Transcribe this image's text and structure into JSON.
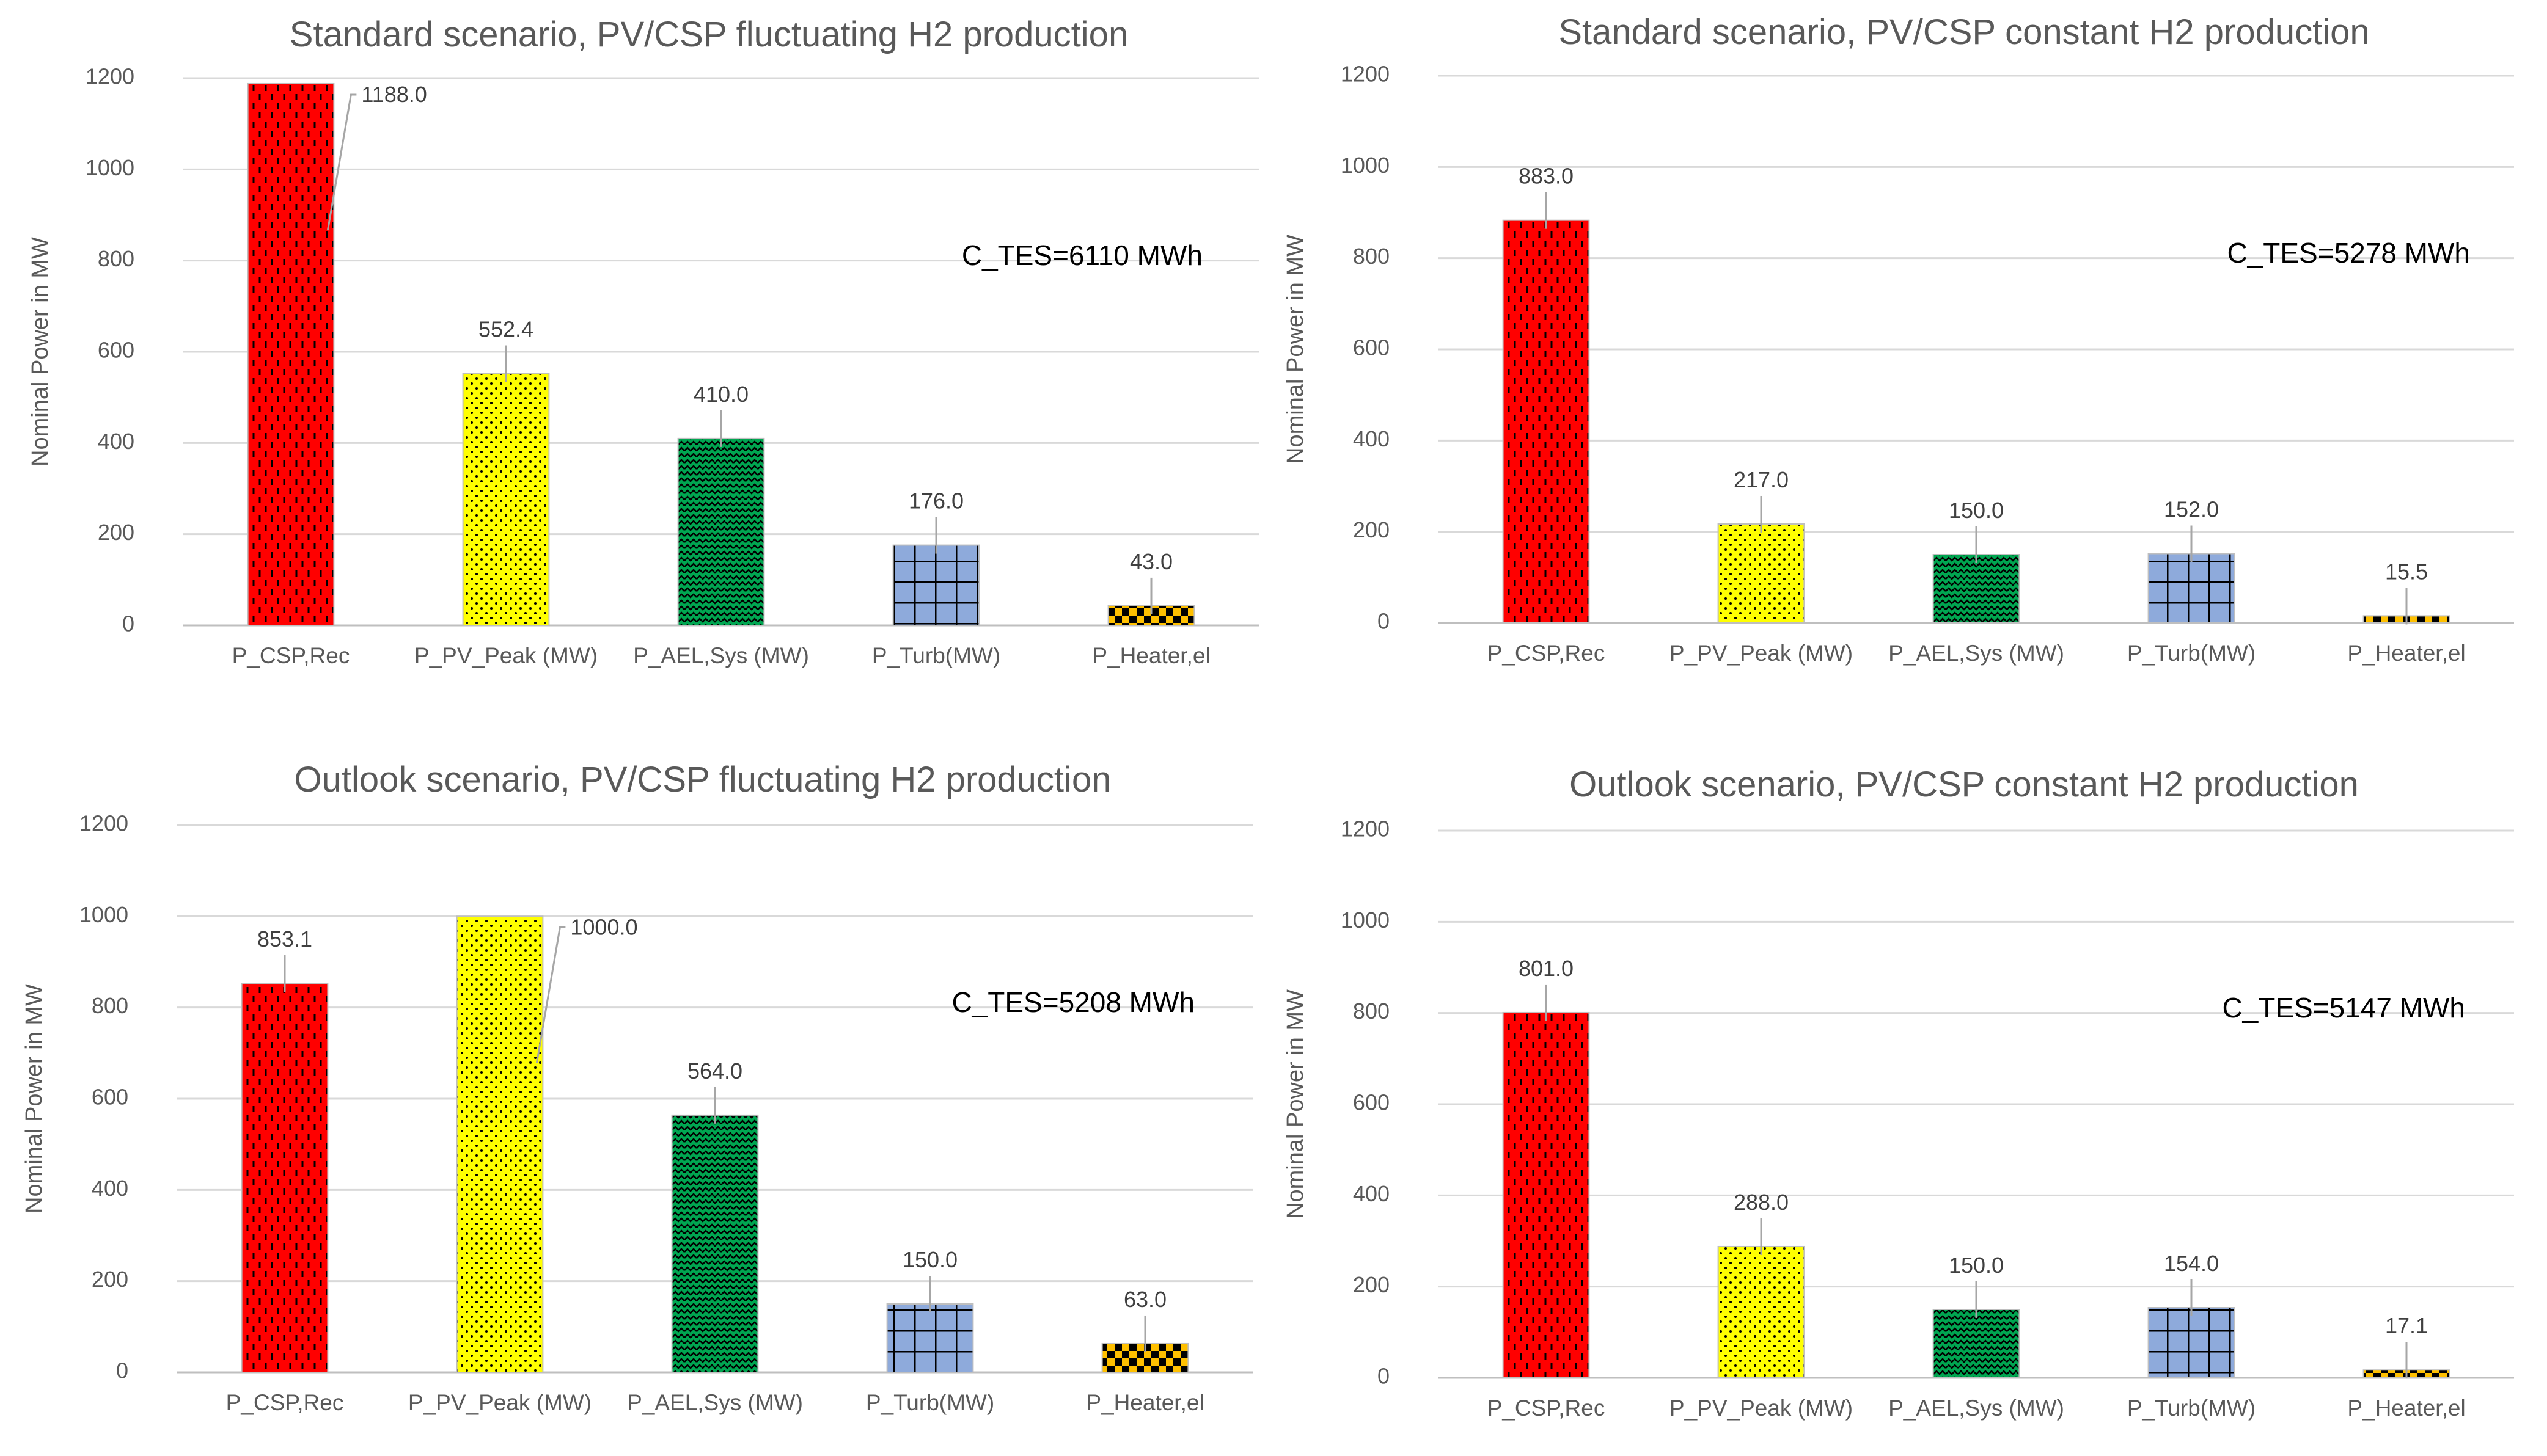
{
  "patterns": {
    "csp": {
      "bg": "#ff0000",
      "fg": "#000000",
      "kind": "dashes"
    },
    "pv": {
      "bg": "#ffff00",
      "fg": "#000000",
      "kind": "dots"
    },
    "ael": {
      "bg": "#00a651",
      "fg": "#000000",
      "kind": "waves"
    },
    "turb": {
      "bg": "#8eaadb",
      "fg": "#000000",
      "kind": "grid"
    },
    "heater": {
      "bg": "#ffc000",
      "fg": "#000000",
      "kind": "checker"
    }
  },
  "chart_data": [
    {
      "type": "bar",
      "title": "Standard scenario, PV/CSP fluctuating H2 production",
      "ylabel": "Nominal Power in MW",
      "xlabel": "",
      "ylim": [
        0,
        1200
      ],
      "yticks": [
        "0",
        "200",
        "400",
        "600",
        "800",
        "1000",
        "1200"
      ],
      "categories": [
        "P_CSP,Rec",
        "P_PV_Peak (MW)",
        "P_AEL,Sys (MW)",
        "P_Turb(MW)",
        "P_Heater,el"
      ],
      "values": [
        1188.0,
        552.4,
        410.0,
        176.0,
        43.0
      ],
      "value_labels": [
        "1188.0",
        "552.4",
        "410.0",
        "176.0",
        "43.0"
      ],
      "patterns": [
        "csp",
        "pv",
        "ael",
        "turb",
        "heater"
      ],
      "annotation": "C_TES=6110 MWh"
    },
    {
      "type": "bar",
      "title": "Standard scenario, PV/CSP constant H2 production",
      "ylabel": "Nominal Power in MW",
      "xlabel": "",
      "ylim": [
        0,
        1200
      ],
      "yticks": [
        "0",
        "200",
        "400",
        "600",
        "800",
        "1000",
        "1200"
      ],
      "categories": [
        "P_CSP,Rec",
        "P_PV_Peak (MW)",
        "P_AEL,Sys (MW)",
        "P_Turb(MW)",
        "P_Heater,el"
      ],
      "values": [
        883.0,
        217.0,
        150.0,
        152.0,
        15.5
      ],
      "value_labels": [
        "883.0",
        "217.0",
        "150.0",
        "152.0",
        "15.5"
      ],
      "patterns": [
        "csp",
        "pv",
        "ael",
        "turb",
        "heater"
      ],
      "annotation": "C_TES=5278 MWh"
    },
    {
      "type": "bar",
      "title": "Outlook scenario, PV/CSP fluctuating H2 production",
      "ylabel": "Nominal Power in MW",
      "xlabel": "",
      "ylim": [
        0,
        1200
      ],
      "yticks": [
        "0",
        "200",
        "400",
        "600",
        "800",
        "1000",
        "1200"
      ],
      "categories": [
        "P_CSP,Rec",
        "P_PV_Peak (MW)",
        "P_AEL,Sys (MW)",
        "P_Turb(MW)",
        "P_Heater,el"
      ],
      "values": [
        853.1,
        1000.0,
        564.0,
        150.0,
        63.0
      ],
      "value_labels": [
        "853.1",
        "1000.0",
        "564.0",
        "150.0",
        "63.0"
      ],
      "patterns": [
        "csp",
        "pv",
        "ael",
        "turb",
        "heater"
      ],
      "annotation": "C_TES=5208 MWh"
    },
    {
      "type": "bar",
      "title": "Outlook scenario, PV/CSP constant H2 production",
      "ylabel": "Nominal Power in MW",
      "xlabel": "",
      "ylim": [
        0,
        1200
      ],
      "yticks": [
        "0",
        "200",
        "400",
        "600",
        "800",
        "1000",
        "1200"
      ],
      "categories": [
        "P_CSP,Rec",
        "P_PV_Peak (MW)",
        "P_AEL,Sys (MW)",
        "P_Turb(MW)",
        "P_Heater,el"
      ],
      "values": [
        801.0,
        288.0,
        150.0,
        154.0,
        17.1
      ],
      "value_labels": [
        "801.0",
        "288.0",
        "150.0",
        "154.0",
        "17.1"
      ],
      "patterns": [
        "csp",
        "pv",
        "ael",
        "turb",
        "heater"
      ],
      "annotation": "C_TES=5147 MWh"
    }
  ]
}
